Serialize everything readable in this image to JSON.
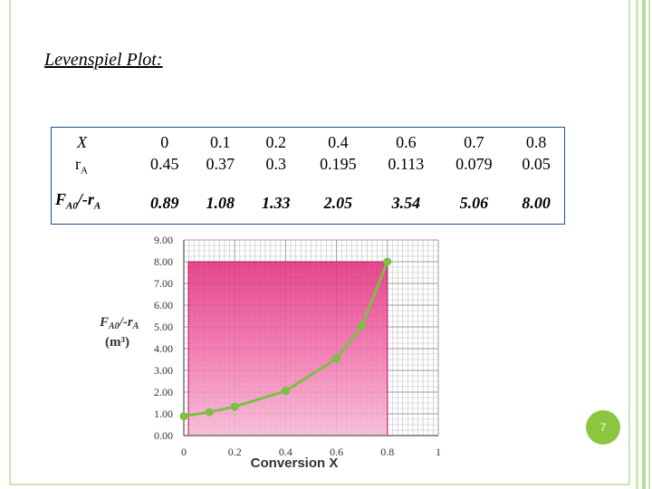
{
  "title": "Levenspiel Plot:",
  "table": {
    "row_x": {
      "label": "X",
      "values": [
        "0",
        "0.1",
        "0.2",
        "0.4",
        "0.6",
        "0.7",
        "0.8"
      ]
    },
    "row_ra": {
      "label_main": "r",
      "label_sub": "A",
      "values": [
        "0.45",
        "0.37",
        "0.3",
        "0.195",
        "0.113",
        "0.079",
        "0.05"
      ]
    },
    "row_fa": {
      "label_main": "F",
      "label_sub1": "A0",
      "label_mid": "/-r",
      "label_sub2": "A",
      "values": [
        "0.89",
        "1.08",
        "1.33",
        "2.05",
        "3.54",
        "5.06",
        "8.00"
      ]
    }
  },
  "page_number": "7",
  "chart_data": {
    "type": "line",
    "x": [
      0,
      0.1,
      0.2,
      0.4,
      0.6,
      0.7,
      0.8
    ],
    "y": [
      0.89,
      1.08,
      1.33,
      2.05,
      3.54,
      5.06,
      8.0
    ],
    "xlabel": "Conversion  X",
    "ylabel_line1_main": "F",
    "ylabel_line1_sub1": "A0",
    "ylabel_line1_mid": "/-r",
    "ylabel_line1_sub2": "A",
    "ylabel_line2": "(m³)",
    "xlim": [
      0,
      1
    ],
    "ylim": [
      0,
      9
    ],
    "xticks": [
      0,
      0.2,
      0.4,
      0.6,
      0.8,
      1
    ],
    "xtick_labels": [
      "0",
      "0.2",
      "0.4",
      "0.6",
      "0.8",
      "1"
    ],
    "yticks": [
      0,
      1,
      2,
      3,
      4,
      5,
      6,
      7,
      8,
      9
    ],
    "ytick_labels": [
      "0.00",
      "1.00",
      "2.00",
      "3.00",
      "4.00",
      "5.00",
      "6.00",
      "7.00",
      "8.00",
      "9.00"
    ],
    "grid": true,
    "shaded_rectangle": {
      "x": [
        0,
        0.8
      ],
      "y": [
        0,
        8.0
      ]
    },
    "colors": {
      "line": "#7ac142",
      "fill": "#e0297a",
      "grid": "#bfbfbf"
    }
  }
}
